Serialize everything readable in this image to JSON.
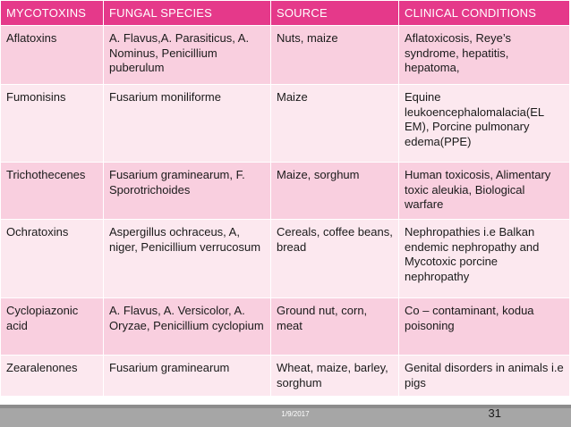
{
  "table": {
    "headers": [
      "MYCOTOXINS",
      "FUNGAL SPECIES",
      "SOURCE",
      "CLINICAL CONDITIONS"
    ],
    "rows": [
      [
        "Aflatoxins",
        "A. Flavus,A. Parasiticus, A. Nominus, Penicillium puberulum",
        "Nuts, maize",
        "Aflatoxicosis, Reye’s syndrome, hepatitis, hepatoma,"
      ],
      [
        "Fumonisins",
        "Fusarium moniliforme",
        "Maize",
        "Equine leukoencephalomalacia(EL EM), Porcine pulmonary edema(PPE)"
      ],
      [
        "Trichothecenes",
        "Fusarium graminearum, F. Sporotrichoides",
        "Maize, sorghum",
        "Human toxicosis, Alimentary toxic aleukia, Biological warfare"
      ],
      [
        "Ochratoxins",
        "Aspergillus ochraceus, A, niger, Penicillium verrucosum",
        "Cereals, coffee beans, bread",
        "Nephropathies i.e Balkan endemic nephropathy and Mycotoxic porcine nephropathy"
      ],
      [
        "Cyclopiazonic acid",
        "A. Flavus, A. Versicolor, A. Oryzae, Penicillium cyclopium",
        "Ground nut, corn, meat",
        "Co – contaminant, kodua poisoning"
      ],
      [
        "Zearalenones",
        "Fusarium graminearum",
        "Wheat, maize, barley, sorghum",
        "Genital disorders in animals i.e pigs"
      ]
    ]
  },
  "footer": {
    "date": "1/9/2017",
    "page_number": "31"
  },
  "colors": {
    "header_bg": "#e5398a",
    "row_dark": "#f9cfdf",
    "row_light": "#fce8ef",
    "footer_bar": "#a6a6a6"
  }
}
